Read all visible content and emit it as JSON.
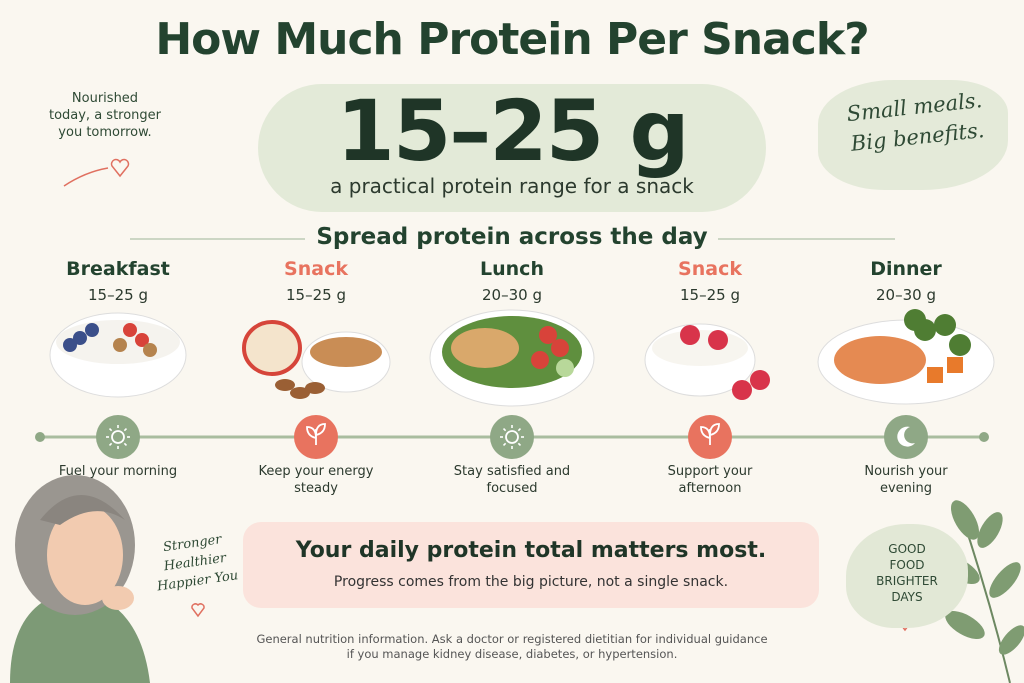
{
  "title": "How Much Protein Per Snack?",
  "hero": {
    "value": "15–25 g",
    "caption": "a practical protein range for a snack"
  },
  "left_note": {
    "lines": [
      "Nourished",
      "today, a stronger",
      "you tomorrow."
    ]
  },
  "right_note": {
    "lines": [
      "Small meals.",
      "Big benefits."
    ]
  },
  "section_title": "Spread protein across the day",
  "meals": [
    {
      "label": "Breakfast",
      "amount": "15–25 g",
      "caption": "Fuel your morning"
    },
    {
      "label": "Snack",
      "amount": "15–25 g",
      "caption": "Keep your energy steady"
    },
    {
      "label": "Lunch",
      "amount": "20–30 g",
      "caption": "Stay satisfied and focused"
    },
    {
      "label": "Snack",
      "amount": "15–25 g",
      "caption": "Support your afternoon"
    },
    {
      "label": "Dinner",
      "amount": "20–30 g",
      "caption": "Nourish your evening"
    }
  ],
  "callout": {
    "title": "Your daily protein total matters most.",
    "text": "Progress comes from the big picture, not a single snack."
  },
  "side_note": {
    "lines": [
      "Stronger",
      "Healthier",
      "Happier You"
    ]
  },
  "badge": {
    "lines": [
      "GOOD",
      "FOOD",
      "BRIGHTER",
      "DAYS"
    ]
  },
  "disclaimer": {
    "lines": [
      "General nutrition information. Ask a doctor or registered dietitian for individual guidance",
      "if you manage kidney disease, diabetes, or hypertension."
    ]
  }
}
